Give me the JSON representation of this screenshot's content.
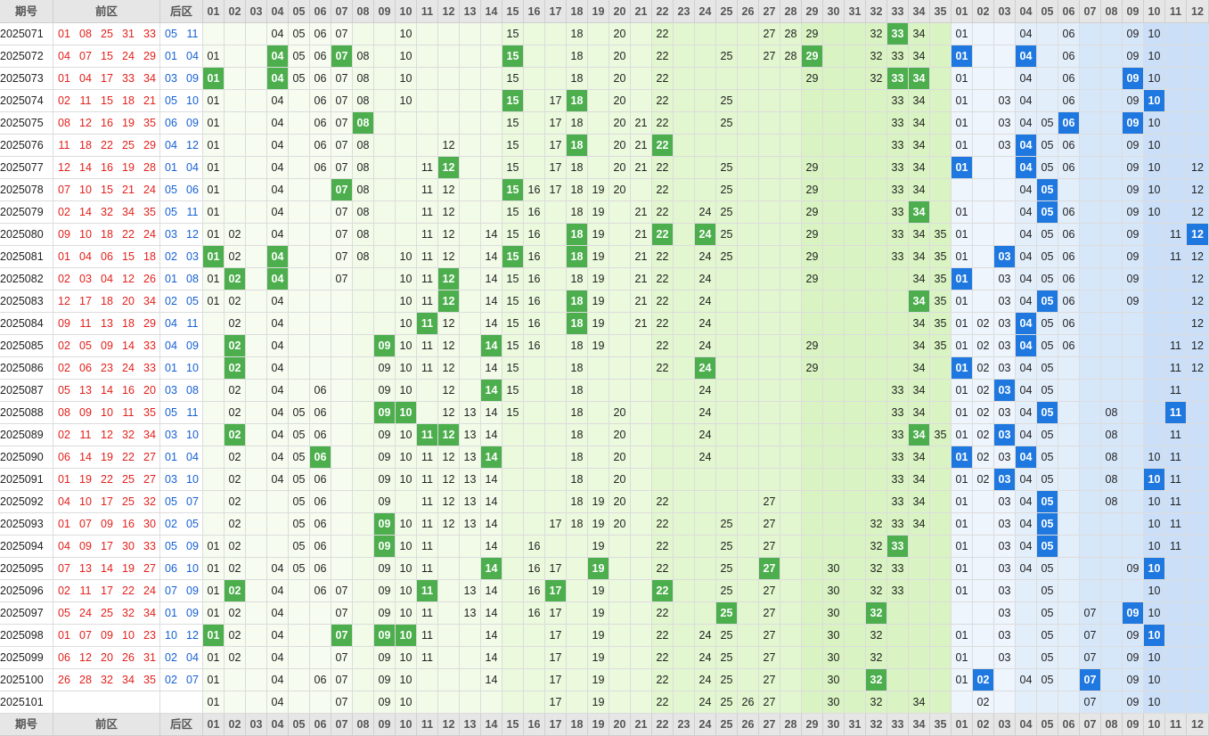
{
  "header": {
    "issue": "期号",
    "front": "前区",
    "back": "后区"
  },
  "front_columns": [
    "01",
    "02",
    "03",
    "04",
    "05",
    "06",
    "07",
    "08",
    "09",
    "10",
    "11",
    "12",
    "13",
    "14",
    "15",
    "16",
    "17",
    "18",
    "19",
    "20",
    "21",
    "22",
    "23",
    "24",
    "25",
    "26",
    "27",
    "28",
    "29",
    "30",
    "31",
    "32",
    "33",
    "34",
    "35"
  ],
  "back_columns": [
    "01",
    "02",
    "03",
    "04",
    "05",
    "06",
    "07",
    "08",
    "09",
    "10",
    "11",
    "12"
  ],
  "rows": [
    {
      "issue": "2025071",
      "front": [
        "01",
        "08",
        "25",
        "31",
        "33"
      ],
      "back": [
        "05",
        "11"
      ],
      "front_grid": [
        "04",
        "05",
        "06",
        "07",
        "10",
        "15",
        "18",
        "20",
        "22",
        "27",
        "28",
        "29",
        "32",
        "33",
        "34"
      ],
      "back_grid": [
        "01",
        "04",
        "06",
        "09",
        "10"
      ]
    },
    {
      "issue": "2025072",
      "front": [
        "04",
        "07",
        "15",
        "24",
        "29"
      ],
      "back": [
        "01",
        "04"
      ],
      "front_grid": [
        "01",
        "04",
        "05",
        "06",
        "07",
        "08",
        "10",
        "15",
        "18",
        "20",
        "22",
        "25",
        "27",
        "28",
        "29",
        "32",
        "33",
        "34"
      ],
      "back_grid": [
        "01",
        "04",
        "06",
        "09",
        "10"
      ]
    },
    {
      "issue": "2025073",
      "front": [
        "01",
        "04",
        "17",
        "33",
        "34"
      ],
      "back": [
        "03",
        "09"
      ],
      "front_grid": [
        "01",
        "04",
        "05",
        "06",
        "07",
        "08",
        "10",
        "15",
        "18",
        "20",
        "22",
        "29",
        "32",
        "33",
        "34"
      ],
      "back_grid": [
        "01",
        "04",
        "06",
        "09",
        "10"
      ]
    },
    {
      "issue": "2025074",
      "front": [
        "02",
        "11",
        "15",
        "18",
        "21"
      ],
      "back": [
        "05",
        "10"
      ],
      "front_grid": [
        "01",
        "04",
        "06",
        "07",
        "08",
        "10",
        "15",
        "17",
        "18",
        "20",
        "22",
        "25",
        "33",
        "34"
      ],
      "back_grid": [
        "01",
        "03",
        "04",
        "06",
        "09",
        "10"
      ]
    },
    {
      "issue": "2025075",
      "front": [
        "08",
        "12",
        "16",
        "19",
        "35"
      ],
      "back": [
        "06",
        "09"
      ],
      "front_grid": [
        "01",
        "04",
        "06",
        "07",
        "08",
        "15",
        "17",
        "18",
        "20",
        "21",
        "22",
        "25",
        "33",
        "34"
      ],
      "back_grid": [
        "01",
        "03",
        "04",
        "05",
        "06",
        "09",
        "10"
      ]
    },
    {
      "issue": "2025076",
      "front": [
        "11",
        "18",
        "22",
        "25",
        "29"
      ],
      "back": [
        "04",
        "12"
      ],
      "front_grid": [
        "01",
        "04",
        "06",
        "07",
        "08",
        "12",
        "15",
        "17",
        "18",
        "20",
        "21",
        "22",
        "33",
        "34"
      ],
      "back_grid": [
        "01",
        "03",
        "04",
        "05",
        "06",
        "09",
        "10"
      ]
    },
    {
      "issue": "2025077",
      "front": [
        "12",
        "14",
        "16",
        "19",
        "28"
      ],
      "back": [
        "01",
        "04"
      ],
      "front_grid": [
        "01",
        "04",
        "06",
        "07",
        "08",
        "11",
        "12",
        "15",
        "17",
        "18",
        "20",
        "21",
        "22",
        "25",
        "29",
        "33",
        "34"
      ],
      "back_grid": [
        "01",
        "04",
        "05",
        "06",
        "09",
        "10",
        "12"
      ]
    },
    {
      "issue": "2025078",
      "front": [
        "07",
        "10",
        "15",
        "21",
        "24"
      ],
      "back": [
        "05",
        "06"
      ],
      "front_grid": [
        "01",
        "04",
        "07",
        "08",
        "11",
        "12",
        "15",
        "16",
        "17",
        "18",
        "19",
        "20",
        "22",
        "25",
        "29",
        "33",
        "34"
      ],
      "back_grid": [
        "04",
        "05",
        "09",
        "10",
        "12"
      ]
    },
    {
      "issue": "2025079",
      "front": [
        "02",
        "14",
        "32",
        "34",
        "35"
      ],
      "back": [
        "05",
        "11"
      ],
      "front_grid": [
        "01",
        "04",
        "07",
        "08",
        "11",
        "12",
        "15",
        "16",
        "18",
        "19",
        "21",
        "22",
        "24",
        "25",
        "29",
        "33",
        "34"
      ],
      "back_grid": [
        "01",
        "04",
        "05",
        "06",
        "09",
        "10",
        "12"
      ]
    },
    {
      "issue": "2025080",
      "front": [
        "09",
        "10",
        "18",
        "22",
        "24"
      ],
      "back": [
        "03",
        "12"
      ],
      "front_grid": [
        "01",
        "02",
        "04",
        "07",
        "08",
        "11",
        "12",
        "14",
        "15",
        "16",
        "18",
        "19",
        "21",
        "22",
        "24",
        "25",
        "29",
        "33",
        "34",
        "35"
      ],
      "back_grid": [
        "01",
        "04",
        "05",
        "06",
        "09",
        "11",
        "12"
      ]
    },
    {
      "issue": "2025081",
      "front": [
        "01",
        "04",
        "06",
        "15",
        "18"
      ],
      "back": [
        "02",
        "03"
      ],
      "front_grid": [
        "01",
        "02",
        "04",
        "07",
        "08",
        "10",
        "11",
        "12",
        "14",
        "15",
        "16",
        "18",
        "19",
        "21",
        "22",
        "24",
        "25",
        "29",
        "33",
        "34",
        "35"
      ],
      "back_grid": [
        "01",
        "03",
        "04",
        "05",
        "06",
        "09",
        "11",
        "12"
      ]
    },
    {
      "issue": "2025082",
      "front": [
        "02",
        "03",
        "04",
        "12",
        "26"
      ],
      "back": [
        "01",
        "08"
      ],
      "front_grid": [
        "01",
        "02",
        "04",
        "07",
        "10",
        "11",
        "12",
        "14",
        "15",
        "16",
        "18",
        "19",
        "21",
        "22",
        "24",
        "29",
        "34",
        "35"
      ],
      "back_grid": [
        "01",
        "03",
        "04",
        "05",
        "06",
        "09",
        "12"
      ]
    },
    {
      "issue": "2025083",
      "front": [
        "12",
        "17",
        "18",
        "20",
        "34"
      ],
      "back": [
        "02",
        "05"
      ],
      "front_grid": [
        "01",
        "02",
        "04",
        "10",
        "11",
        "12",
        "14",
        "15",
        "16",
        "18",
        "19",
        "21",
        "22",
        "24",
        "34",
        "35"
      ],
      "back_grid": [
        "01",
        "03",
        "04",
        "05",
        "06",
        "09",
        "12"
      ]
    },
    {
      "issue": "2025084",
      "front": [
        "09",
        "11",
        "13",
        "18",
        "29"
      ],
      "back": [
        "04",
        "11"
      ],
      "front_grid": [
        "02",
        "04",
        "10",
        "11",
        "12",
        "14",
        "15",
        "16",
        "18",
        "19",
        "21",
        "22",
        "24",
        "34",
        "35"
      ],
      "back_grid": [
        "01",
        "02",
        "03",
        "04",
        "05",
        "06",
        "12"
      ]
    },
    {
      "issue": "2025085",
      "front": [
        "02",
        "05",
        "09",
        "14",
        "33"
      ],
      "back": [
        "04",
        "09"
      ],
      "front_grid": [
        "02",
        "04",
        "09",
        "10",
        "11",
        "12",
        "14",
        "15",
        "16",
        "18",
        "19",
        "22",
        "24",
        "29",
        "34",
        "35"
      ],
      "back_grid": [
        "01",
        "02",
        "03",
        "04",
        "05",
        "06",
        "11",
        "12"
      ]
    },
    {
      "issue": "2025086",
      "front": [
        "02",
        "06",
        "23",
        "24",
        "33"
      ],
      "back": [
        "01",
        "10"
      ],
      "front_grid": [
        "02",
        "04",
        "09",
        "10",
        "11",
        "12",
        "14",
        "15",
        "18",
        "22",
        "24",
        "29",
        "34"
      ],
      "back_grid": [
        "01",
        "02",
        "03",
        "04",
        "05",
        "11",
        "12"
      ]
    },
    {
      "issue": "2025087",
      "front": [
        "05",
        "13",
        "14",
        "16",
        "20"
      ],
      "back": [
        "03",
        "08"
      ],
      "front_grid": [
        "02",
        "04",
        "06",
        "09",
        "10",
        "12",
        "14",
        "15",
        "18",
        "24",
        "33",
        "34"
      ],
      "back_grid": [
        "01",
        "02",
        "03",
        "04",
        "05",
        "11"
      ]
    },
    {
      "issue": "2025088",
      "front": [
        "08",
        "09",
        "10",
        "11",
        "35"
      ],
      "back": [
        "05",
        "11"
      ],
      "front_grid": [
        "02",
        "04",
        "05",
        "06",
        "09",
        "10",
        "12",
        "13",
        "14",
        "15",
        "18",
        "20",
        "24",
        "33",
        "34"
      ],
      "back_grid": [
        "01",
        "02",
        "03",
        "04",
        "05",
        "08",
        "11"
      ]
    },
    {
      "issue": "2025089",
      "front": [
        "02",
        "11",
        "12",
        "32",
        "34"
      ],
      "back": [
        "03",
        "10"
      ],
      "front_grid": [
        "02",
        "04",
        "05",
        "06",
        "09",
        "10",
        "11",
        "12",
        "13",
        "14",
        "18",
        "20",
        "24",
        "33",
        "34",
        "35"
      ],
      "back_grid": [
        "01",
        "02",
        "03",
        "04",
        "05",
        "08",
        "11"
      ]
    },
    {
      "issue": "2025090",
      "front": [
        "06",
        "14",
        "19",
        "22",
        "27"
      ],
      "back": [
        "01",
        "04"
      ],
      "front_grid": [
        "02",
        "04",
        "05",
        "06",
        "09",
        "10",
        "11",
        "12",
        "13",
        "14",
        "18",
        "20",
        "24",
        "33",
        "34"
      ],
      "back_grid": [
        "01",
        "02",
        "03",
        "04",
        "05",
        "08",
        "10",
        "11"
      ]
    },
    {
      "issue": "2025091",
      "front": [
        "01",
        "19",
        "22",
        "25",
        "27"
      ],
      "back": [
        "03",
        "10"
      ],
      "front_grid": [
        "02",
        "04",
        "05",
        "06",
        "09",
        "10",
        "11",
        "12",
        "13",
        "14",
        "18",
        "20",
        "33",
        "34"
      ],
      "back_grid": [
        "01",
        "02",
        "03",
        "04",
        "05",
        "08",
        "10",
        "11"
      ]
    },
    {
      "issue": "2025092",
      "front": [
        "04",
        "10",
        "17",
        "25",
        "32"
      ],
      "back": [
        "05",
        "07"
      ],
      "front_grid": [
        "02",
        "05",
        "06",
        "09",
        "11",
        "12",
        "13",
        "14",
        "18",
        "19",
        "20",
        "22",
        "27",
        "33",
        "34"
      ],
      "back_grid": [
        "01",
        "03",
        "04",
        "05",
        "08",
        "10",
        "11"
      ]
    },
    {
      "issue": "2025093",
      "front": [
        "01",
        "07",
        "09",
        "16",
        "30"
      ],
      "back": [
        "02",
        "05"
      ],
      "front_grid": [
        "02",
        "05",
        "06",
        "09",
        "10",
        "11",
        "12",
        "13",
        "14",
        "17",
        "18",
        "19",
        "20",
        "22",
        "25",
        "27",
        "32",
        "33",
        "34"
      ],
      "back_grid": [
        "01",
        "03",
        "04",
        "05",
        "10",
        "11"
      ]
    },
    {
      "issue": "2025094",
      "front": [
        "04",
        "09",
        "17",
        "30",
        "33"
      ],
      "back": [
        "05",
        "09"
      ],
      "front_grid": [
        "01",
        "02",
        "05",
        "06",
        "09",
        "10",
        "11",
        "14",
        "16",
        "19",
        "22",
        "25",
        "27",
        "32",
        "33"
      ],
      "back_grid": [
        "01",
        "03",
        "04",
        "05",
        "10",
        "11"
      ]
    },
    {
      "issue": "2025095",
      "front": [
        "07",
        "13",
        "14",
        "19",
        "27"
      ],
      "back": [
        "06",
        "10"
      ],
      "front_grid": [
        "01",
        "02",
        "04",
        "05",
        "06",
        "09",
        "10",
        "11",
        "14",
        "16",
        "17",
        "19",
        "22",
        "25",
        "27",
        "30",
        "32",
        "33"
      ],
      "back_grid": [
        "01",
        "03",
        "04",
        "05",
        "09",
        "10"
      ]
    },
    {
      "issue": "2025096",
      "front": [
        "02",
        "11",
        "17",
        "22",
        "24"
      ],
      "back": [
        "07",
        "09"
      ],
      "front_grid": [
        "01",
        "02",
        "04",
        "06",
        "07",
        "09",
        "10",
        "11",
        "13",
        "14",
        "16",
        "17",
        "19",
        "22",
        "25",
        "27",
        "30",
        "32",
        "33"
      ],
      "back_grid": [
        "01",
        "03",
        "05",
        "10"
      ]
    },
    {
      "issue": "2025097",
      "front": [
        "05",
        "24",
        "25",
        "32",
        "34"
      ],
      "back": [
        "01",
        "09"
      ],
      "front_grid": [
        "01",
        "02",
        "04",
        "07",
        "09",
        "10",
        "11",
        "13",
        "14",
        "16",
        "17",
        "19",
        "22",
        "25",
        "27",
        "30",
        "32"
      ],
      "back_grid": [
        "03",
        "05",
        "07",
        "09",
        "10"
      ]
    },
    {
      "issue": "2025098",
      "front": [
        "01",
        "07",
        "09",
        "10",
        "23"
      ],
      "back": [
        "10",
        "12"
      ],
      "front_grid": [
        "01",
        "02",
        "04",
        "07",
        "09",
        "10",
        "11",
        "14",
        "17",
        "19",
        "22",
        "24",
        "25",
        "27",
        "30",
        "32"
      ],
      "back_grid": [
        "01",
        "03",
        "05",
        "07",
        "09",
        "10"
      ]
    },
    {
      "issue": "2025099",
      "front": [
        "06",
        "12",
        "20",
        "26",
        "31"
      ],
      "back": [
        "02",
        "04"
      ],
      "front_grid": [
        "01",
        "02",
        "04",
        "07",
        "09",
        "10",
        "11",
        "14",
        "17",
        "19",
        "22",
        "24",
        "25",
        "27",
        "30",
        "32"
      ],
      "back_grid": [
        "01",
        "03",
        "05",
        "07",
        "09",
        "10"
      ]
    },
    {
      "issue": "2025100",
      "front": [
        "26",
        "28",
        "32",
        "34",
        "35"
      ],
      "back": [
        "02",
        "07"
      ],
      "front_grid": [
        "01",
        "04",
        "06",
        "07",
        "09",
        "10",
        "14",
        "17",
        "19",
        "22",
        "24",
        "25",
        "27",
        "30",
        "32"
      ],
      "back_grid": [
        "01",
        "02",
        "04",
        "05",
        "07",
        "09",
        "10"
      ]
    },
    {
      "issue": "2025101",
      "front": [],
      "back": [],
      "front_grid": [
        "01",
        "04",
        "07",
        "09",
        "10",
        "17",
        "19",
        "22",
        "24",
        "25",
        "26",
        "27",
        "30",
        "32",
        "34"
      ],
      "back_grid": [
        "02",
        "07",
        "09",
        "10"
      ]
    }
  ]
}
